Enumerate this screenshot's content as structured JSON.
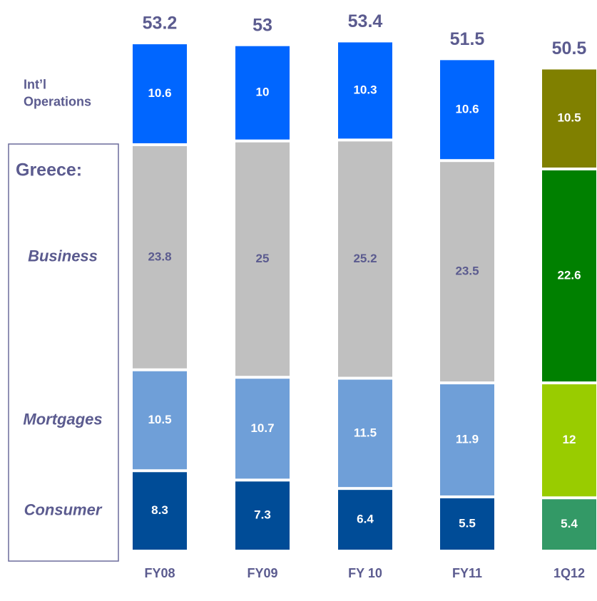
{
  "chart_data": {
    "type": "stacked_bar",
    "categories": [
      "FY08",
      "FY09",
      "FY 10",
      "FY11",
      "1Q12"
    ],
    "series": [
      {
        "name": "Consumer",
        "color": "#004c97",
        "colors": [
          "#004c97",
          "#004c97",
          "#004c97",
          "#004c97",
          "#339966"
        ],
        "values": [
          8.3,
          7.3,
          6.4,
          5.5,
          5.4
        ]
      },
      {
        "name": "Mortgages",
        "color": "#6f9fd8",
        "colors": [
          "#6f9fd8",
          "#6f9fd8",
          "#6f9fd8",
          "#6f9fd8",
          "#99cc00"
        ],
        "values": [
          10.5,
          10.7,
          11.5,
          11.9,
          12.0
        ]
      },
      {
        "name": "Business",
        "color": "#c0c0c0",
        "colors": [
          "#c0c0c0",
          "#c0c0c0",
          "#c0c0c0",
          "#c0c0c0",
          "#008000"
        ],
        "values": [
          23.8,
          25.0,
          25.2,
          23.5,
          22.6
        ]
      },
      {
        "name": "Int’l Operations",
        "color": "#0066ff",
        "colors": [
          "#0066ff",
          "#0066ff",
          "#0066ff",
          "#0066ff",
          "#808000"
        ],
        "values": [
          10.6,
          10.0,
          10.3,
          10.6,
          10.5
        ]
      }
    ],
    "totals": [
      53.2,
      53.0,
      53.4,
      51.5,
      50.5
    ],
    "group_label": "Greece:"
  }
}
